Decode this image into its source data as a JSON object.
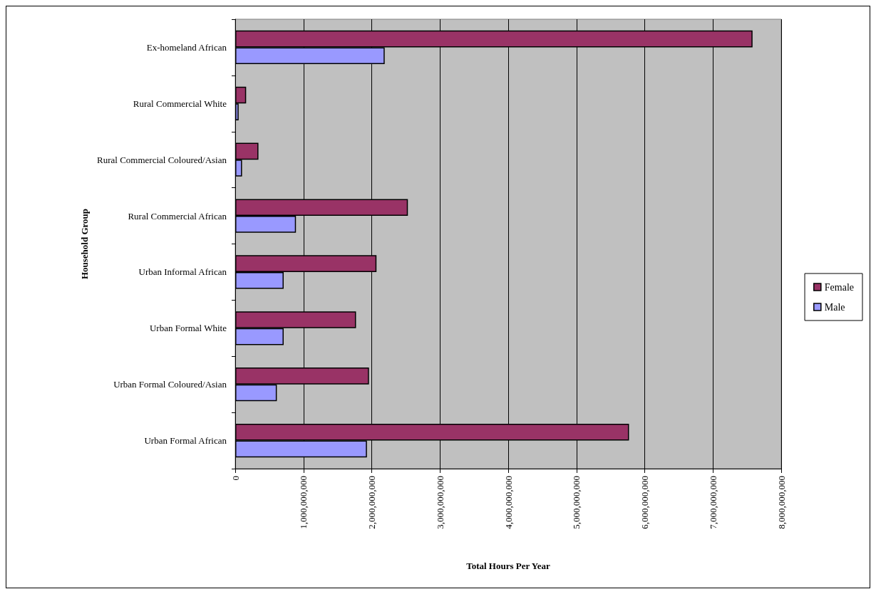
{
  "chart_data": {
    "type": "bar",
    "orientation": "horizontal",
    "xlabel": "Total Hours Per Year",
    "ylabel": "Household Group",
    "categories": [
      "Ex-homeland African",
      "Rural Commercial White",
      "Rural Commercial Coloured/Asian",
      "Rural Commercial African",
      "Urban Informal African",
      "Urban Formal White",
      "Urban Formal Coloured/Asian",
      "Urban Formal African"
    ],
    "series": [
      {
        "name": "Female",
        "color": "#993366",
        "values": [
          7580000000,
          160000000,
          340000000,
          2530000000,
          2070000000,
          1770000000,
          1960000000,
          5770000000
        ]
      },
      {
        "name": "Male",
        "color": "#9999ff",
        "values": [
          2190000000,
          50000000,
          100000000,
          890000000,
          710000000,
          710000000,
          610000000,
          1930000000
        ]
      }
    ],
    "xlim": [
      0,
      8000000000
    ],
    "xticks": [
      0,
      {
        "value": 1000000000,
        "label": "1,000,000,000"
      },
      {
        "value": 2000000000,
        "label": "2,000,000,000"
      },
      {
        "value": 3000000000,
        "label": "3,000,000,000"
      },
      {
        "value": 4000000000,
        "label": "4,000,000,000"
      },
      {
        "value": 5000000000,
        "label": "5,000,000,000"
      },
      {
        "value": 6000000000,
        "label": "6,000,000,000"
      },
      {
        "value": 7000000000,
        "label": "7,000,000,000"
      },
      {
        "value": 8000000000,
        "label": "8,000,000,000"
      }
    ],
    "grid": "x",
    "legend": "right"
  }
}
